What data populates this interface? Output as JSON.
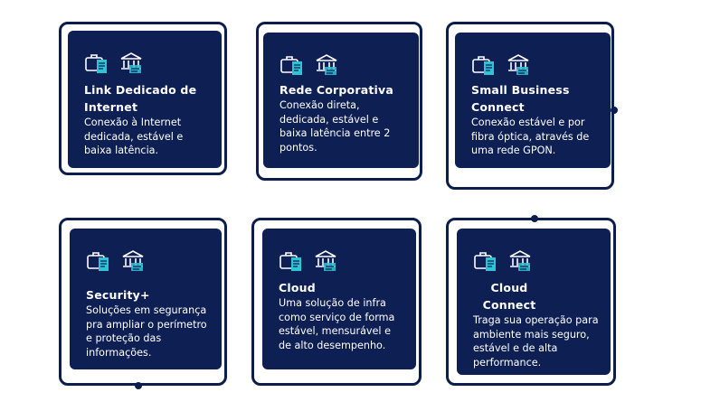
{
  "cards": [
    {
      "title": "Link Dedicado de Internet",
      "desc": "Conexão à Internet dedicada, estável e baixa latência.",
      "icon_left": "briefcase-document-icon",
      "icon_right": "bank-hand-icon"
    },
    {
      "title": "Rede Corporativa",
      "desc": "Conexão direta, dedicada, estável e baixa latência entre 2 pontos.",
      "icon_left": "briefcase-document-icon",
      "icon_right": "bank-hand-icon"
    },
    {
      "title": "Small Business Connect",
      "desc": "Conexão estável e por fibra óptica, através de uma rede GPON.",
      "icon_left": "briefcase-document-icon",
      "icon_right": "bank-hand-icon"
    },
    {
      "title": "Security+",
      "desc": "Soluções em segurança pra ampliar o perímetro e proteção das informações.",
      "icon_left": "briefcase-document-icon",
      "icon_right": "bank-hand-icon"
    },
    {
      "title": "Cloud",
      "desc": "Uma solução de infra como serviço de forma estável, mensurável e de alto desempenho.",
      "icon_left": "briefcase-document-icon",
      "icon_right": "bank-hand-icon"
    },
    {
      "title": "Cloud Connect",
      "desc": "Traga sua operação para ambiente mais seguro, estável e de alta performance.",
      "icon_left": "briefcase-document-icon",
      "icon_right": "bank-hand-icon"
    }
  ],
  "colors": {
    "navy": "#0e1f54",
    "frame": "#0b1d4d",
    "accent": "#2ec4d6",
    "text": "#ffffff"
  }
}
